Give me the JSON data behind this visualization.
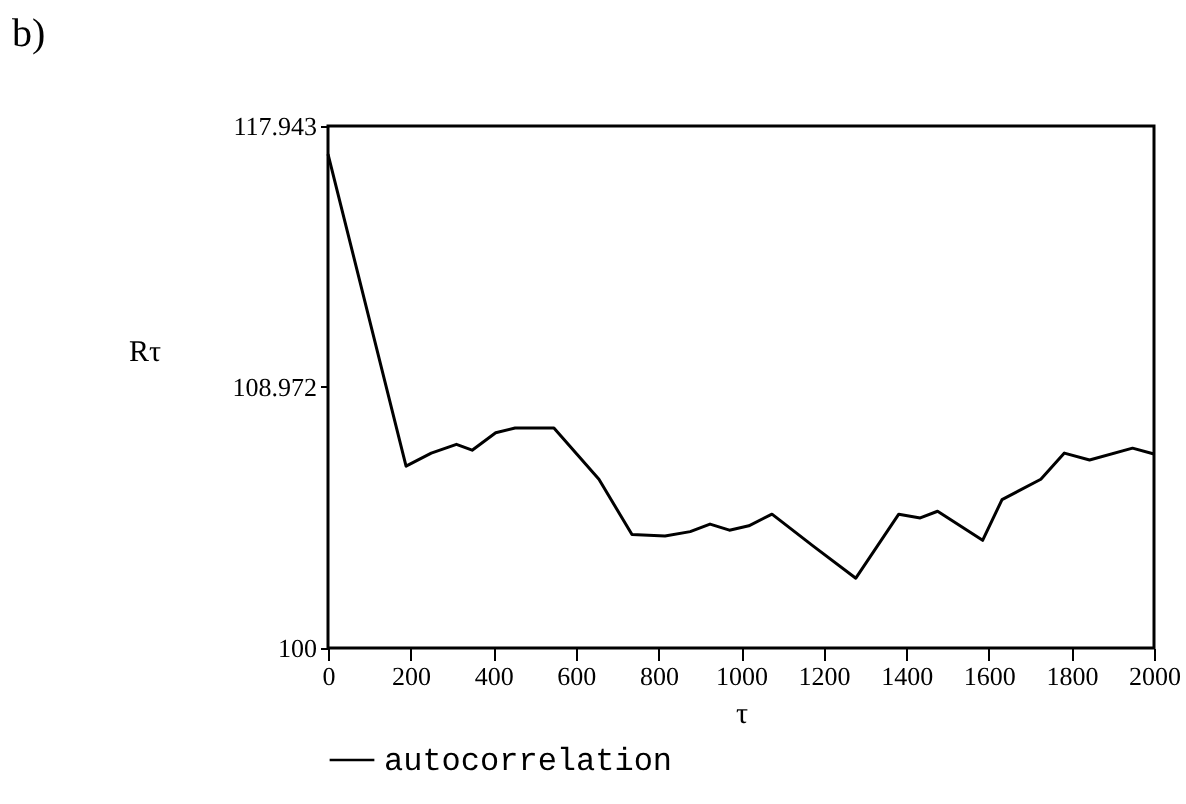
{
  "chart_data": {
    "type": "line",
    "title": "b)",
    "xlabel": "τ",
    "ylabel": "Rτ",
    "x": [
      0,
      189,
      250,
      311,
      349,
      406,
      453,
      547,
      656,
      736,
      816,
      877,
      925,
      972,
      1019,
      1075,
      1175,
      1278,
      1382,
      1434,
      1476,
      1585,
      1632,
      1726,
      1783,
      1844,
      1948,
      2000
    ],
    "series": [
      {
        "name": "autocorrelation",
        "color": "#000000",
        "values": [
          116.98,
          106.25,
          106.7,
          107.0,
          106.8,
          107.4,
          107.56,
          107.56,
          105.8,
          103.9,
          103.85,
          104.0,
          104.26,
          104.05,
          104.2,
          104.6,
          103.5,
          102.4,
          104.6,
          104.47,
          104.7,
          103.7,
          105.1,
          105.8,
          106.7,
          106.46,
          106.87,
          106.67
        ]
      }
    ],
    "xlim": [
      0,
      2000
    ],
    "xticks": [
      0,
      200,
      400,
      600,
      800,
      1000,
      1200,
      1400,
      1600,
      1800,
      2000
    ],
    "ylim": [
      100,
      117.943
    ],
    "yticks": [
      100,
      108.972,
      117.943
    ],
    "grid": false,
    "legend": "bottom",
    "marker": "none",
    "line_style": "solid"
  }
}
